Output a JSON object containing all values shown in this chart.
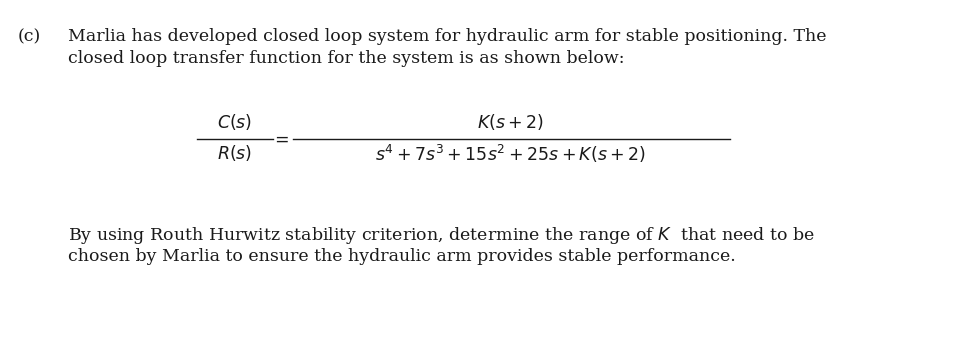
{
  "background_color": "#ffffff",
  "fig_width": 9.6,
  "fig_height": 3.48,
  "dpi": 100,
  "label_c": "(c)",
  "para1_line1": "Marlia has developed closed loop system for hydraulic arm for stable positioning. The",
  "para1_line2": "closed loop transfer function for the system is as shown below:",
  "para2_line1": "By using Routh Hurwitz stability criterion, determine the range of $\\mathit{K}$  that need to be",
  "para2_line2": "chosen by Marlia to ensure the hydraulic arm provides stable performance.",
  "font_size_main": 12.5,
  "text_color": "#1a1a1a"
}
